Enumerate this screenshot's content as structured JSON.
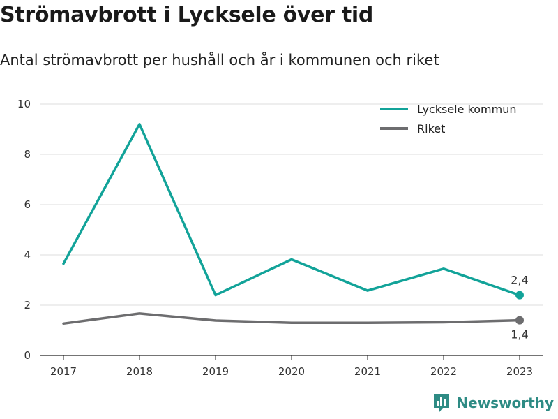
{
  "header": {
    "title": "Strömavbrott i Lycksele över tid",
    "subtitle": "Antal strömavbrott per hushåll och år i kommunen och riket"
  },
  "chart_data": {
    "type": "line",
    "x": [
      "2017",
      "2018",
      "2019",
      "2020",
      "2021",
      "2022",
      "2023"
    ],
    "ylim": [
      0,
      10
    ],
    "yticks": [
      "0",
      "2",
      "4",
      "6",
      "8",
      "10"
    ],
    "grid": true,
    "legend_position": "top-right",
    "series": [
      {
        "name": "Lycksele kommun",
        "color": "#12a399",
        "values": [
          3.65,
          9.2,
          2.4,
          3.82,
          2.58,
          3.45,
          2.4
        ],
        "end_label": "2,4"
      },
      {
        "name": "Riket",
        "color": "#6d6d6f",
        "values": [
          1.27,
          1.67,
          1.39,
          1.3,
          1.3,
          1.32,
          1.4
        ],
        "end_label": "1,4"
      }
    ]
  },
  "brand": {
    "name": "Newsworthy",
    "color": "#2e8b84",
    "icon": "bar-chart-logo-icon"
  }
}
